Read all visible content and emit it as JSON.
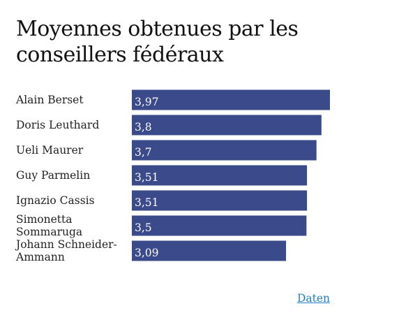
{
  "chart_data": {
    "type": "bar",
    "orientation": "horizontal",
    "title": "Moyennes obtenues par les conseillers fédéraux",
    "categories": [
      [
        "Alain Berset"
      ],
      [
        "Doris Leuthard"
      ],
      [
        "Ueli Maurer"
      ],
      [
        "Guy Parmelin"
      ],
      [
        "Ignazio Cassis"
      ],
      [
        "Simonetta",
        "Sommaruga"
      ],
      [
        "Johann Schneider-",
        "Ammann"
      ]
    ],
    "values": [
      3.97,
      3.8,
      3.7,
      3.51,
      3.51,
      3.5,
      3.09
    ],
    "value_labels": [
      "3,97",
      "3,8",
      "3,7",
      "3,51",
      "3,51",
      "3,5",
      "3,09"
    ],
    "xlim": [
      0,
      3.97
    ],
    "grid": false,
    "bar_color": "#3b4a8a"
  },
  "link": {
    "label": "Daten",
    "color": "#1f7fbf"
  }
}
